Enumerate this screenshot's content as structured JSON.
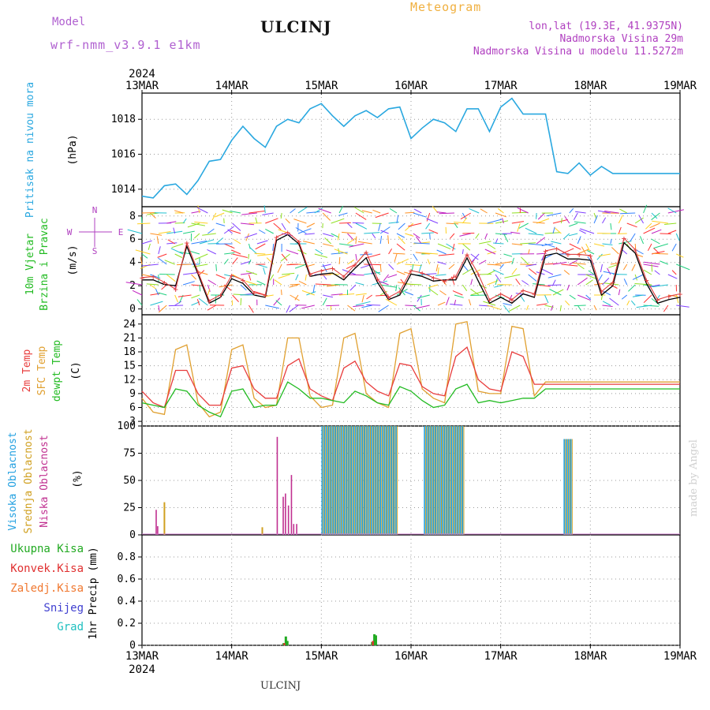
{
  "header": {
    "title": "ULCINJ",
    "meteogram": "Meteogram",
    "model_label": "Model",
    "model_name": "wrf-nmm_v3.9.1  e1km",
    "lonlat": "lon,lat (19.3E, 41.9375N)",
    "elevation": "Nadmorska Visina 29m",
    "elevation_model": "Nadmorska Visina u modelu 11.5272m"
  },
  "footer": {
    "location": "ULCINJ",
    "made_by": "made by Angel"
  },
  "time_axis": {
    "year": "2024",
    "labels": [
      "13MAR",
      "14MAR",
      "15MAR",
      "16MAR",
      "17MAR",
      "18MAR",
      "19MAR"
    ]
  },
  "colors": {
    "pressure": "#2aa8e0",
    "temp2m": "#e83c3c",
    "sfc_temp": "#e0a030",
    "dewpt": "#22bb22",
    "high_cloud": "#22a0e0",
    "mid_cloud": "#d0a020",
    "low_cloud": "#c03090",
    "total_precip": "#22aa22",
    "conv_precip": "#e03030",
    "frozen_precip": "#f07830",
    "snow": "#4040d0",
    "hail": "#20c0c0",
    "wind_speed": "#000000",
    "wind_gust": "#e04040"
  },
  "chart_data": [
    {
      "type": "line",
      "panel": "pressure",
      "ylabel_lines": [
        "Pritisak na nivou mora",
        "(hPa)"
      ],
      "ylim": [
        1013,
        1019.5
      ],
      "yticks": [
        1014,
        1016,
        1018
      ],
      "x": [
        0,
        3,
        6,
        9,
        12,
        15,
        18,
        21,
        24,
        27,
        30,
        33,
        36,
        39,
        42,
        45,
        48,
        51,
        54,
        57,
        60,
        63,
        66,
        69,
        72,
        75,
        78,
        81,
        84,
        87,
        90,
        93,
        96,
        99,
        102,
        105,
        108,
        111,
        114,
        117,
        120,
        123,
        126,
        129,
        132,
        135,
        138,
        141,
        144
      ],
      "series": [
        {
          "name": "Pritisak na nivou mora",
          "values": [
            1013.6,
            1013.5,
            1014.2,
            1014.3,
            1013.7,
            1014.5,
            1015.6,
            1015.7,
            1016.8,
            1017.6,
            1016.9,
            1016.4,
            1017.6,
            1018.0,
            1017.8,
            1018.6,
            1018.9,
            1018.2,
            1017.6,
            1018.2,
            1018.5,
            1018.1,
            1018.6,
            1018.7,
            1016.9,
            1017.5,
            1018.0,
            1017.8,
            1017.3,
            1018.6,
            1018.6,
            1017.3,
            1018.7,
            1019.2,
            1018.3,
            1018.3,
            1018.3,
            1015.0,
            1014.9,
            1015.5,
            1014.8,
            1015.3,
            1014.9,
            1014.9,
            1014.9,
            1014.9,
            1014.9,
            1014.9,
            1014.9
          ]
        }
      ]
    },
    {
      "type": "line",
      "panel": "wind",
      "ylabel_lines": [
        "10m Vjetar",
        "Brzina i Pravac",
        "(m/s)"
      ],
      "compass": [
        "N",
        "E",
        "S",
        "W"
      ],
      "ylim": [
        -0.5,
        8.8
      ],
      "yticks": [
        0,
        2,
        4,
        6,
        8
      ],
      "x": [
        0,
        3,
        6,
        9,
        12,
        15,
        18,
        21,
        24,
        27,
        30,
        33,
        36,
        39,
        42,
        45,
        48,
        51,
        54,
        57,
        60,
        63,
        66,
        69,
        72,
        75,
        78,
        81,
        84,
        87,
        90,
        93,
        96,
        99,
        102,
        105,
        108,
        111,
        114,
        117,
        120,
        123,
        126,
        129,
        132,
        135,
        138,
        141,
        144
      ],
      "series": [
        {
          "name": "speed",
          "values": [
            2.5,
            2.5,
            2.1,
            2.0,
            5.4,
            3.0,
            0.5,
            1.0,
            2.6,
            2.2,
            1.2,
            1.0,
            5.9,
            6.4,
            5.6,
            2.8,
            3.0,
            3.1,
            2.5,
            3.5,
            4.4,
            2.3,
            0.8,
            1.2,
            3.0,
            2.8,
            2.4,
            2.5,
            2.5,
            4.4,
            2.4,
            0.5,
            1.0,
            0.5,
            1.3,
            1.0,
            4.6,
            4.8,
            4.3,
            4.3,
            4.2,
            1.2,
            2.0,
            5.7,
            4.8,
            2.2,
            0.5,
            0.8,
            1.0
          ]
        },
        {
          "name": "gust",
          "values": [
            2.7,
            2.8,
            2.3,
            1.7,
            5.7,
            3.2,
            0.7,
            1.2,
            2.9,
            2.5,
            1.4,
            1.2,
            6.2,
            6.6,
            5.8,
            3.0,
            3.3,
            3.5,
            2.8,
            3.8,
            4.9,
            2.6,
            1.0,
            1.5,
            3.3,
            3.1,
            2.7,
            2.4,
            2.8,
            4.7,
            3.0,
            0.8,
            1.3,
            0.8,
            1.6,
            1.3,
            5.0,
            5.2,
            4.7,
            4.7,
            4.6,
            1.5,
            2.3,
            6.1,
            5.1,
            2.5,
            0.8,
            1.1,
            1.3
          ]
        }
      ]
    },
    {
      "type": "line",
      "panel": "temperature",
      "ylabel_lines": [
        "2m Temp",
        "SFC Temp",
        "dewpt Temp",
        "(C)"
      ],
      "ylim": [
        2,
        26
      ],
      "yticks": [
        3,
        6,
        9,
        12,
        15,
        18,
        21,
        24
      ],
      "x": [
        0,
        3,
        6,
        9,
        12,
        15,
        18,
        21,
        24,
        27,
        30,
        33,
        36,
        39,
        42,
        45,
        48,
        51,
        54,
        57,
        60,
        63,
        66,
        69,
        72,
        75,
        78,
        81,
        84,
        87,
        90,
        93,
        96,
        99,
        102,
        105,
        108,
        111,
        114,
        117,
        120,
        123,
        126,
        129,
        132,
        135,
        138,
        141,
        144
      ],
      "series": [
        {
          "name": "2m Temp",
          "values": [
            9.5,
            7.0,
            6.0,
            14.0,
            14.0,
            9.0,
            6.5,
            6.5,
            14.5,
            15.0,
            10.0,
            8.0,
            8.0,
            15.0,
            16.5,
            10.0,
            8.5,
            7.5,
            14.5,
            16.0,
            11.5,
            9.5,
            8.5,
            15.5,
            15.0,
            10.5,
            9.0,
            8.5,
            17.0,
            19.0,
            12.0,
            10.0,
            9.5,
            18.0,
            17.0,
            11.0,
            11.0,
            11.0,
            11.0,
            11.0,
            11.0,
            11.0,
            11.0,
            11.0,
            11.0,
            11.0,
            11.0,
            11.0,
            11.0
          ]
        },
        {
          "name": "SFC Temp",
          "values": [
            8.0,
            5.0,
            4.5,
            18.5,
            19.5,
            7.0,
            4.0,
            5.0,
            18.5,
            19.5,
            8.0,
            6.0,
            6.5,
            21.0,
            21.0,
            8.5,
            6.0,
            6.5,
            21.0,
            22.0,
            9.0,
            7.0,
            6.0,
            22.0,
            23.0,
            10.0,
            8.0,
            7.0,
            24.0,
            24.5,
            9.5,
            9.0,
            9.0,
            23.5,
            23.0,
            8.5,
            11.5,
            11.5,
            11.5,
            11.5,
            11.5,
            11.5,
            11.5,
            11.5,
            11.5,
            11.5,
            11.5,
            11.5,
            11.5
          ]
        },
        {
          "name": "dewpt Temp",
          "values": [
            7.0,
            6.5,
            6.0,
            10.0,
            9.5,
            6.5,
            5.0,
            4.0,
            9.5,
            10.0,
            6.0,
            6.5,
            6.5,
            11.5,
            10.0,
            8.0,
            8.0,
            7.5,
            7.0,
            9.5,
            8.5,
            7.0,
            6.5,
            10.5,
            9.5,
            7.5,
            6.0,
            6.5,
            10.0,
            11.0,
            7.0,
            7.5,
            7.0,
            7.5,
            8.0,
            8.0,
            10.0,
            10.0,
            10.0,
            10.0,
            10.0,
            10.0,
            10.0,
            10.0,
            10.0,
            10.0,
            10.0,
            10.0,
            10.0
          ]
        }
      ]
    },
    {
      "type": "bar",
      "panel": "clouds",
      "ylabel_lines": [
        "Visoka Oblacnost",
        "Srednja Oblacnost",
        "Niska Oblacnost",
        "(%)"
      ],
      "ylim": [
        0,
        100
      ],
      "yticks": [
        0,
        25,
        50,
        75,
        100
      ],
      "series": [
        {
          "name": "Niska Oblacnost",
          "x": [
            3.8,
            4.2,
            36.2,
            37.8,
            38.4,
            39.2,
            40.0,
            40.6,
            41.4,
            41.8
          ],
          "values": [
            23,
            8,
            90,
            35,
            38,
            27,
            55,
            10,
            10,
            0
          ]
        },
        {
          "name": "Srednja Oblacnost",
          "x": [
            6.0,
            32.2
          ],
          "values": [
            30,
            7
          ]
        },
        {
          "name": "Visoka Oblacnost",
          "ranges": [
            [
              48.2,
              68.0
            ],
            [
              75.6,
              86.0
            ],
            [
              113.0,
              115.0
            ]
          ],
          "values": [
            100,
            100,
            88
          ]
        }
      ]
    },
    {
      "type": "bar",
      "panel": "precip",
      "ylabel_lines": [
        "Ukupna Kisa",
        "Konvek.Kisa",
        "Zaledj.Kisa",
        "Snijeg",
        "Grad",
        "1hr Precip (mm)"
      ],
      "ylim": [
        0,
        1.0
      ],
      "yticks": [
        0,
        0.2,
        0.4,
        0.6,
        0.8
      ],
      "series": [
        {
          "name": "Ukupna Kisa",
          "x": [
            37.9,
            38.5,
            38.9,
            61.6,
            62.2,
            62.6
          ],
          "values": [
            0.02,
            0.08,
            0.04,
            0.03,
            0.1,
            0.09
          ]
        },
        {
          "name": "Konvek.Kisa",
          "x": [
            38.1,
            61.8
          ],
          "values": [
            0.02,
            0.04
          ]
        }
      ]
    }
  ]
}
